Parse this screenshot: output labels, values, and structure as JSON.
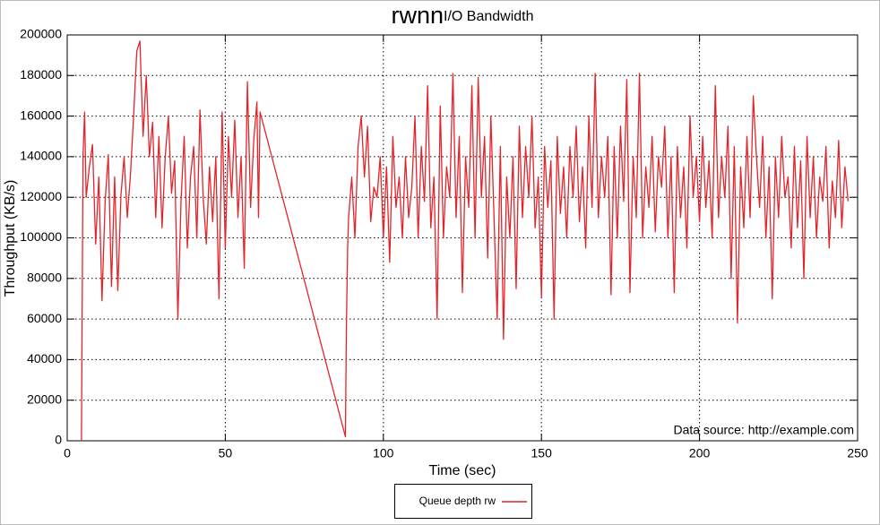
{
  "chart_data": {
    "type": "line",
    "title": "rwnn",
    "subtitle": "I/O Bandwidth",
    "xlabel": "Time (sec)",
    "ylabel": "Throughput (KB/s)",
    "annotation": "Data source: http://example.com",
    "xlim": [
      0,
      250
    ],
    "ylim": [
      0,
      200000
    ],
    "xticks": [
      0,
      50,
      100,
      150,
      200,
      250
    ],
    "yticks": [
      0,
      20000,
      40000,
      60000,
      80000,
      100000,
      120000,
      140000,
      160000,
      180000,
      200000
    ],
    "grid": true,
    "legend": "bottom",
    "x": [
      4.5,
      5,
      5.5,
      6,
      7,
      8,
      9,
      10,
      11,
      12,
      13,
      14,
      15,
      16,
      17,
      18,
      19,
      20,
      21,
      22,
      23,
      24,
      25,
      26,
      27,
      28,
      29,
      30,
      31,
      32,
      33,
      34,
      35,
      36,
      37,
      38,
      39,
      40,
      41,
      42,
      43,
      44,
      45,
      46,
      47,
      48,
      49,
      50,
      51,
      52,
      53,
      54,
      55,
      56,
      57,
      58,
      59,
      60,
      60.5,
      61,
      88,
      88.3,
      88.7,
      89,
      90,
      91,
      92,
      93,
      94,
      95,
      96,
      97,
      98,
      99,
      100,
      101,
      102,
      103,
      104,
      105,
      106,
      107,
      108,
      109,
      110,
      111,
      112,
      113,
      114,
      115,
      116,
      117,
      118,
      119,
      120,
      121,
      122,
      123,
      124,
      125,
      126,
      127,
      128,
      129,
      130,
      131,
      132,
      133,
      134,
      135,
      136,
      137,
      138,
      139,
      140,
      141,
      142,
      143,
      144,
      145,
      146,
      147,
      148,
      149,
      150,
      151,
      152,
      153,
      154,
      155,
      156,
      157,
      158,
      159,
      160,
      161,
      162,
      163,
      164,
      165,
      166,
      167,
      168,
      169,
      170,
      171,
      172,
      173,
      174,
      175,
      176,
      177,
      178,
      179,
      180,
      181,
      182,
      183,
      184,
      185,
      186,
      187,
      188,
      189,
      190,
      191,
      192,
      193,
      194,
      195,
      196,
      197,
      198,
      199,
      200,
      201,
      202,
      203,
      204,
      205,
      206,
      207,
      208,
      209,
      210,
      211,
      212,
      213,
      214,
      215,
      216,
      217,
      218,
      219,
      220,
      221,
      222,
      223,
      224,
      225,
      226,
      227,
      228,
      229,
      230,
      231,
      232,
      233,
      234,
      235,
      236,
      237,
      238,
      239,
      240,
      241,
      242,
      243,
      244,
      245,
      246,
      247
    ],
    "series": [
      {
        "name": "Queue depth rw",
        "color": "#e3242b",
        "values": [
          0,
          140000,
          162000,
          120000,
          135000,
          146000,
          97000,
          130000,
          69000,
          118000,
          141000,
          76000,
          130000,
          74000,
          121000,
          140000,
          110000,
          131000,
          160000,
          192000,
          197000,
          150000,
          180000,
          140000,
          157000,
          110000,
          150000,
          105000,
          140000,
          160000,
          122000,
          138000,
          60000,
          118000,
          150000,
          95000,
          130000,
          145000,
          100000,
          163000,
          120000,
          97000,
          135000,
          108000,
          140000,
          70000,
          162000,
          95000,
          150000,
          120000,
          158000,
          110000,
          140000,
          85000,
          177000,
          115000,
          148000,
          167000,
          110000,
          162000,
          2000,
          55000,
          95000,
          110000,
          130000,
          100000,
          145000,
          160000,
          130000,
          155000,
          108000,
          125000,
          120000,
          140000,
          100000,
          135000,
          88000,
          150000,
          115000,
          130000,
          100000,
          140000,
          110000,
          125000,
          160000,
          100000,
          145000,
          118000,
          175000,
          105000,
          130000,
          60000,
          165000,
          100000,
          135000,
          120000,
          181000,
          110000,
          150000,
          73000,
          140000,
          115000,
          175000,
          100000,
          179000,
          120000,
          150000,
          90000,
          160000,
          110000,
          60000,
          145000,
          50000,
          130000,
          100000,
          140000,
          75000,
          155000,
          110000,
          145000,
          120000,
          160000,
          105000,
          130000,
          71000,
          145000,
          115000,
          138000,
          60000,
          150000,
          112000,
          135000,
          100000,
          145000,
          120000,
          155000,
          108000,
          135000,
          95000,
          160000,
          115000,
          181000,
          110000,
          140000,
          120000,
          150000,
          72000,
          145000,
          100000,
          155000,
          118000,
          178000,
          73000,
          140000,
          110000,
          181000,
          100000,
          135000,
          115000,
          150000,
          103000,
          140000,
          125000,
          155000,
          100000,
          140000,
          73000,
          145000,
          110000,
          135000,
          95000,
          160000,
          120000,
          140000,
          108000,
          150000,
          115000,
          138000,
          100000,
          175000,
          110000,
          140000,
          120000,
          155000,
          80000,
          145000,
          58000,
          135000,
          105000,
          150000,
          110000,
          170000,
          140000,
          115000,
          150000,
          100000,
          135000,
          70000,
          140000,
          110000,
          150000,
          120000,
          130000,
          95000,
          145000,
          105000,
          138000,
          80000,
          150000,
          110000,
          140000,
          100000,
          130000,
          118000,
          145000,
          95000,
          128000,
          110000,
          148000,
          105000,
          135000,
          118000
        ]
      }
    ]
  }
}
